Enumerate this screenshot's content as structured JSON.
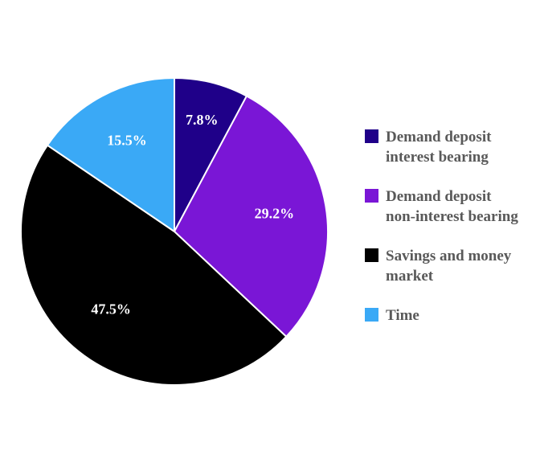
{
  "chart_data": {
    "type": "pie",
    "title": "",
    "series": [
      {
        "values": [
          7.8,
          29.2,
          47.5,
          15.5
        ],
        "labels": [
          "7.8%",
          "29.2%",
          "47.5%",
          "15.5%"
        ]
      }
    ],
    "categories": [
      "Demand deposit\ninterest bearing",
      "Demand deposit\nnon-interest bearing",
      "Savings and money\nmarket",
      "Time"
    ],
    "colors": [
      "#1f0089",
      "#7a16d6",
      "#000000",
      "#3aa9f6"
    ],
    "start_angle": "12 o'clock",
    "direction": "clockwise",
    "legend_position": "right"
  }
}
